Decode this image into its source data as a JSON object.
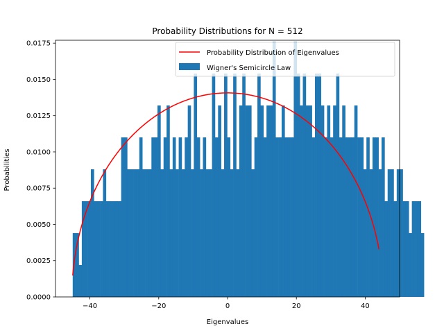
{
  "chart_data": {
    "type": "bar",
    "title": "Probability Distributions for N = 512",
    "xlabel": "Eigenvalues",
    "ylabel": "Probabilities",
    "xlim": [
      -50,
      50
    ],
    "ylim": [
      0,
      0.0177
    ],
    "xticks": [
      -40,
      -20,
      0,
      20,
      40
    ],
    "xtick_labels": [
      "−40",
      "−20",
      "0",
      "20",
      "40"
    ],
    "yticks": [
      0,
      0.0025,
      0.005,
      0.0075,
      0.01,
      0.0125,
      0.015,
      0.0175
    ],
    "ytick_labels": [
      "0.0000",
      "0.0025",
      "0.0050",
      "0.0075",
      "0.0100",
      "0.0125",
      "0.0150",
      "0.0175"
    ],
    "grid": false,
    "legend_position": "top-right",
    "colors": {
      "histogram": "#1f77b4",
      "curve": "#ff0000"
    },
    "series": [
      {
        "name": "Wigner's Semicircle Law",
        "kind": "histogram",
        "bin_start": -45,
        "bin_width": 0.88,
        "values": [
          0.0044,
          0.0044,
          0.0022,
          0.0066,
          0.0066,
          0.0066,
          0.0088,
          0.0066,
          0.0066,
          0.0066,
          0.0088,
          0.0066,
          0.0066,
          0.0066,
          0.0066,
          0.0066,
          0.011,
          0.011,
          0.0088,
          0.0088,
          0.0088,
          0.0088,
          0.011,
          0.0088,
          0.0088,
          0.0088,
          0.011,
          0.011,
          0.0132,
          0.0088,
          0.011,
          0.0132,
          0.0088,
          0.011,
          0.0088,
          0.011,
          0.0088,
          0.011,
          0.0132,
          0.0088,
          0.0154,
          0.011,
          0.0088,
          0.011,
          0.0088,
          0.0088,
          0.0154,
          0.011,
          0.0132,
          0.0088,
          0.0154,
          0.011,
          0.0088,
          0.0154,
          0.0088,
          0.0132,
          0.0154,
          0.0132,
          0.0132,
          0.0088,
          0.011,
          0.0154,
          0.0132,
          0.011,
          0.0132,
          0.0132,
          0.0176,
          0.011,
          0.011,
          0.0132,
          0.011,
          0.011,
          0.011,
          0.0176,
          0.0154,
          0.0132,
          0.0154,
          0.0132,
          0.0132,
          0.011,
          0.0154,
          0.0154,
          0.0132,
          0.011,
          0.0132,
          0.011,
          0.0132,
          0.0154,
          0.011,
          0.0132,
          0.011,
          0.011,
          0.011,
          0.0132,
          0.011,
          0.011,
          0.0088,
          0.011,
          0.0088,
          0.011,
          0.011,
          0.0088,
          0.011,
          0.0066,
          0.0088,
          0.0088,
          0.0066,
          0.0088,
          0.0088,
          0.0066,
          0.0066,
          0.0044,
          0.0066,
          0.0066,
          0.0066,
          0.0044
        ]
      },
      {
        "name": "Probability Distribution of Eigenvalues",
        "kind": "line",
        "formula": "semicircle",
        "radius": 45.25,
        "x_range": [
          -45,
          44
        ]
      }
    ]
  }
}
